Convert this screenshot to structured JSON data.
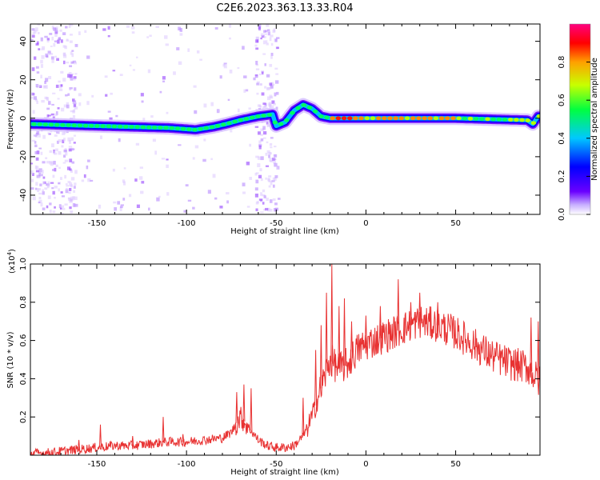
{
  "page": {
    "title": "C2E6.2023.363.13.33.R04"
  },
  "chart_data": [
    {
      "type": "heatmap",
      "xlabel": "Height of straight line (km)",
      "ylabel": "Frequency (Hz)",
      "xlim": [
        -187,
        97
      ],
      "ylim": [
        -50,
        49
      ],
      "xticks": [
        -150,
        -100,
        -50,
        0,
        50
      ],
      "yticks": [
        -40,
        -20,
        0,
        20,
        40
      ],
      "colorbar": {
        "label": "Normalized spectral amplitude",
        "range": [
          0,
          1
        ],
        "ticks": [
          "0.0",
          "0.2",
          "0.4",
          "0.6",
          "0.8"
        ],
        "colormap": [
          "#ffffff",
          "#6a00ff",
          "#0000ff",
          "#00d0ff",
          "#00ff40",
          "#c8ff00",
          "#ffa000",
          "#ff0000",
          "#ff0080"
        ]
      },
      "ridge": [
        {
          "x": -187,
          "f": -3
        },
        {
          "x": -170,
          "f": -3.5
        },
        {
          "x": -150,
          "f": -4
        },
        {
          "x": -130,
          "f": -4.5
        },
        {
          "x": -110,
          "f": -5
        },
        {
          "x": -95,
          "f": -6
        },
        {
          "x": -85,
          "f": -4.5
        },
        {
          "x": -78,
          "f": -3
        },
        {
          "x": -70,
          "f": -1
        },
        {
          "x": -60,
          "f": 1
        },
        {
          "x": -52,
          "f": 2
        },
        {
          "x": -50,
          "f": -4
        },
        {
          "x": -45,
          "f": -2
        },
        {
          "x": -40,
          "f": 4
        },
        {
          "x": -35,
          "f": 7
        },
        {
          "x": -30,
          "f": 5
        },
        {
          "x": -25,
          "f": 1
        },
        {
          "x": -20,
          "f": 0
        },
        {
          "x": 0,
          "f": 0
        },
        {
          "x": 50,
          "f": 0
        },
        {
          "x": 90,
          "f": -1
        },
        {
          "x": 93,
          "f": -3
        },
        {
          "x": 96,
          "f": 1
        }
      ]
    },
    {
      "type": "line",
      "xlabel": "Height of straight line (km)",
      "ylabel": "SNR (10 * v/v)",
      "y_multiplier": "(x10",
      "y_multiplier_exp": "4",
      "y_multiplier_close": ")",
      "xlim": [
        -187,
        97
      ],
      "ylim": [
        0,
        1.0
      ],
      "xticks": [
        -150,
        -100,
        -50,
        0,
        50
      ],
      "yticks": [
        0.2,
        0.4,
        0.6,
        0.8,
        1.0
      ],
      "series": [
        {
          "color": "#e83232",
          "x": [
            -187,
            -180,
            -170,
            -160,
            -150,
            -140,
            -130,
            -120,
            -110,
            -100,
            -90,
            -80,
            -75,
            -70,
            -65,
            -60,
            -55,
            -50,
            -45,
            -40,
            -35,
            -30,
            -25,
            -20,
            -15,
            -10,
            -5,
            0,
            10,
            20,
            30,
            40,
            50,
            60,
            70,
            80,
            90,
            97
          ],
          "y": [
            0.01,
            0.01,
            0.02,
            0.03,
            0.04,
            0.05,
            0.05,
            0.06,
            0.07,
            0.07,
            0.08,
            0.09,
            0.12,
            0.2,
            0.14,
            0.08,
            0.05,
            0.04,
            0.04,
            0.05,
            0.1,
            0.2,
            0.35,
            0.5,
            0.45,
            0.48,
            0.55,
            0.58,
            0.62,
            0.66,
            0.7,
            0.68,
            0.64,
            0.58,
            0.52,
            0.48,
            0.46,
            0.38
          ]
        }
      ],
      "spikes": [
        {
          "x": -170,
          "y": 0.04
        },
        {
          "x": -160,
          "y": 0.08
        },
        {
          "x": -148,
          "y": 0.16
        },
        {
          "x": -130,
          "y": 0.1
        },
        {
          "x": -113,
          "y": 0.2
        },
        {
          "x": -102,
          "y": 0.11
        },
        {
          "x": -72,
          "y": 0.33
        },
        {
          "x": -68,
          "y": 0.37
        },
        {
          "x": -64,
          "y": 0.35
        },
        {
          "x": -35,
          "y": 0.3
        },
        {
          "x": -28,
          "y": 0.55
        },
        {
          "x": -25,
          "y": 0.68
        },
        {
          "x": -22,
          "y": 0.85
        },
        {
          "x": -19,
          "y": 1.0
        },
        {
          "x": -15,
          "y": 0.78
        },
        {
          "x": -12,
          "y": 0.82
        },
        {
          "x": -8,
          "y": 0.7
        },
        {
          "x": 0,
          "y": 0.73
        },
        {
          "x": 8,
          "y": 0.78
        },
        {
          "x": 18,
          "y": 0.92
        },
        {
          "x": 25,
          "y": 0.8
        },
        {
          "x": 30,
          "y": 0.85
        },
        {
          "x": 40,
          "y": 0.8
        },
        {
          "x": 92,
          "y": 0.72
        },
        {
          "x": 96,
          "y": 0.7
        }
      ]
    }
  ]
}
